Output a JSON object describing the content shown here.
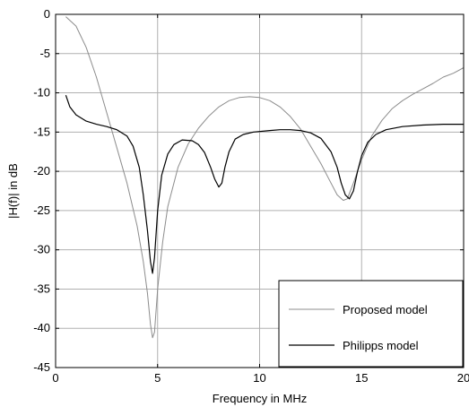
{
  "chart_data": {
    "type": "line",
    "xlabel": "Frequency in MHz",
    "ylabel": "|H(f)| in dB",
    "xlim": [
      0,
      20
    ],
    "ylim": [
      -45,
      0
    ],
    "xticks": [
      0,
      5,
      10,
      15,
      20
    ],
    "yticks": [
      0,
      -5,
      -10,
      -15,
      -20,
      -25,
      -30,
      -35,
      -40,
      -45
    ],
    "grid": true,
    "legend_position": "bottom-right",
    "series": [
      {
        "name": "Proposed model",
        "color": "#8c8c8c",
        "x": [
          0.5,
          1.0,
          1.5,
          2.0,
          2.5,
          3.0,
          3.5,
          4.0,
          4.3,
          4.5,
          4.65,
          4.75,
          4.85,
          5.0,
          5.25,
          5.5,
          6.0,
          6.5,
          7.0,
          7.5,
          8.0,
          8.5,
          9.0,
          9.5,
          10.0,
          10.5,
          11.0,
          11.5,
          12.0,
          12.5,
          13.0,
          13.5,
          13.8,
          14.1,
          14.3,
          14.6,
          15.0,
          15.5,
          16.0,
          16.5,
          17.0,
          17.5,
          18.0,
          18.5,
          19.0,
          19.5,
          20.0
        ],
        "y": [
          -0.3,
          -1.5,
          -4.2,
          -8.0,
          -12.5,
          -17.0,
          -21.5,
          -27.0,
          -31.5,
          -35.5,
          -39.5,
          -41.2,
          -40.5,
          -35.0,
          -29.0,
          -24.5,
          -19.5,
          -16.5,
          -14.5,
          -13.0,
          -11.8,
          -11.0,
          -10.6,
          -10.5,
          -10.6,
          -11.0,
          -11.8,
          -13.0,
          -14.6,
          -16.8,
          -19.0,
          -21.5,
          -23.0,
          -23.7,
          -23.5,
          -21.5,
          -18.5,
          -15.5,
          -13.5,
          -12.0,
          -11.0,
          -10.2,
          -9.5,
          -8.8,
          -8.0,
          -7.5,
          -6.8
        ]
      },
      {
        "name": "Philipps model",
        "color": "#000000",
        "x": [
          0.5,
          0.7,
          1.0,
          1.5,
          2.0,
          2.5,
          3.0,
          3.5,
          3.8,
          4.1,
          4.3,
          4.5,
          4.65,
          4.75,
          4.85,
          5.0,
          5.2,
          5.5,
          5.8,
          6.2,
          6.7,
          7.0,
          7.3,
          7.6,
          7.8,
          8.0,
          8.15,
          8.3,
          8.5,
          8.8,
          9.2,
          9.7,
          10.5,
          11.0,
          11.5,
          12.0,
          12.5,
          13.0,
          13.5,
          13.8,
          14.0,
          14.2,
          14.4,
          14.6,
          14.8,
          15.0,
          15.3,
          15.7,
          16.2,
          17.0,
          18.0,
          19.0,
          20.0
        ],
        "y": [
          -10.3,
          -11.8,
          -12.8,
          -13.6,
          -14.0,
          -14.3,
          -14.7,
          -15.5,
          -16.8,
          -19.5,
          -23.0,
          -27.5,
          -31.5,
          -33.0,
          -31.0,
          -25.0,
          -20.5,
          -17.8,
          -16.6,
          -16.0,
          -16.1,
          -16.6,
          -17.6,
          -19.5,
          -21.0,
          -22.0,
          -21.5,
          -19.5,
          -17.5,
          -15.9,
          -15.3,
          -15.0,
          -14.8,
          -14.7,
          -14.7,
          -14.8,
          -15.1,
          -15.8,
          -17.5,
          -19.5,
          -21.5,
          -23.0,
          -23.5,
          -22.5,
          -20.0,
          -18.0,
          -16.3,
          -15.3,
          -14.7,
          -14.3,
          -14.1,
          -14.0,
          -14.0
        ]
      }
    ]
  }
}
